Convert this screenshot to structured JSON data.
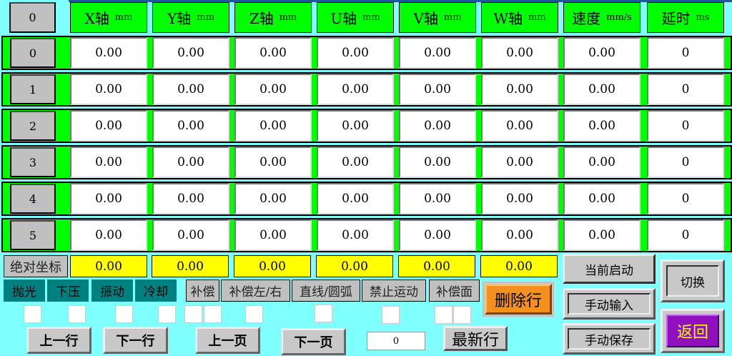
{
  "header": {
    "index": "0",
    "columns": [
      {
        "name": "X轴",
        "unit": "mm"
      },
      {
        "name": "Y轴",
        "unit": "mm"
      },
      {
        "name": "Z轴",
        "unit": "mm"
      },
      {
        "name": "U轴",
        "unit": "mm"
      },
      {
        "name": "V轴",
        "unit": "mm"
      },
      {
        "name": "W轴",
        "unit": "mm"
      },
      {
        "name": "速度",
        "unit": "mm/s"
      },
      {
        "name": "延时",
        "unit": "ms"
      }
    ]
  },
  "rows": [
    {
      "index": "0",
      "values": [
        "0.00",
        "0.00",
        "0.00",
        "0.00",
        "0.00",
        "0.00",
        "0.00",
        "0"
      ]
    },
    {
      "index": "1",
      "values": [
        "0.00",
        "0.00",
        "0.00",
        "0.00",
        "0.00",
        "0.00",
        "0.00",
        "0"
      ]
    },
    {
      "index": "2",
      "values": [
        "0.00",
        "0.00",
        "0.00",
        "0.00",
        "0.00",
        "0.00",
        "0.00",
        "0"
      ]
    },
    {
      "index": "3",
      "values": [
        "0.00",
        "0.00",
        "0.00",
        "0.00",
        "0.00",
        "0.00",
        "0.00",
        "0"
      ]
    },
    {
      "index": "4",
      "values": [
        "0.00",
        "0.00",
        "0.00",
        "0.00",
        "0.00",
        "0.00",
        "0.00",
        "0"
      ]
    },
    {
      "index": "5",
      "values": [
        "0.00",
        "0.00",
        "0.00",
        "0.00",
        "0.00",
        "0.00",
        "0.00",
        "0"
      ]
    }
  ],
  "absolute": {
    "label": "绝对坐标",
    "values": [
      "0.00",
      "0.00",
      "0.00",
      "0.00",
      "0.00",
      "0.00"
    ]
  },
  "flags": [
    "抛光",
    "下压",
    "振动",
    "冷却"
  ],
  "options": [
    "补偿",
    "补偿左/右",
    "直线/圆弧",
    "禁止运动",
    "补偿面"
  ],
  "buttons": {
    "current_start": "当前启动",
    "switch": "切换",
    "manual_input": "手动输入",
    "manual_save": "手动保存",
    "delete_row": "删除行",
    "latest_row": "最新行",
    "back": "返回",
    "prev_row": "上一行",
    "next_row": "下一行",
    "prev_page": "上一页",
    "next_page": "下一页"
  },
  "page_input": "0",
  "colors": {
    "background": "#80FFFF",
    "header": "#00FF00",
    "absolute": "#FFFF00",
    "flag": "#008080",
    "delete": "#F39020",
    "back": "#9010C0"
  }
}
